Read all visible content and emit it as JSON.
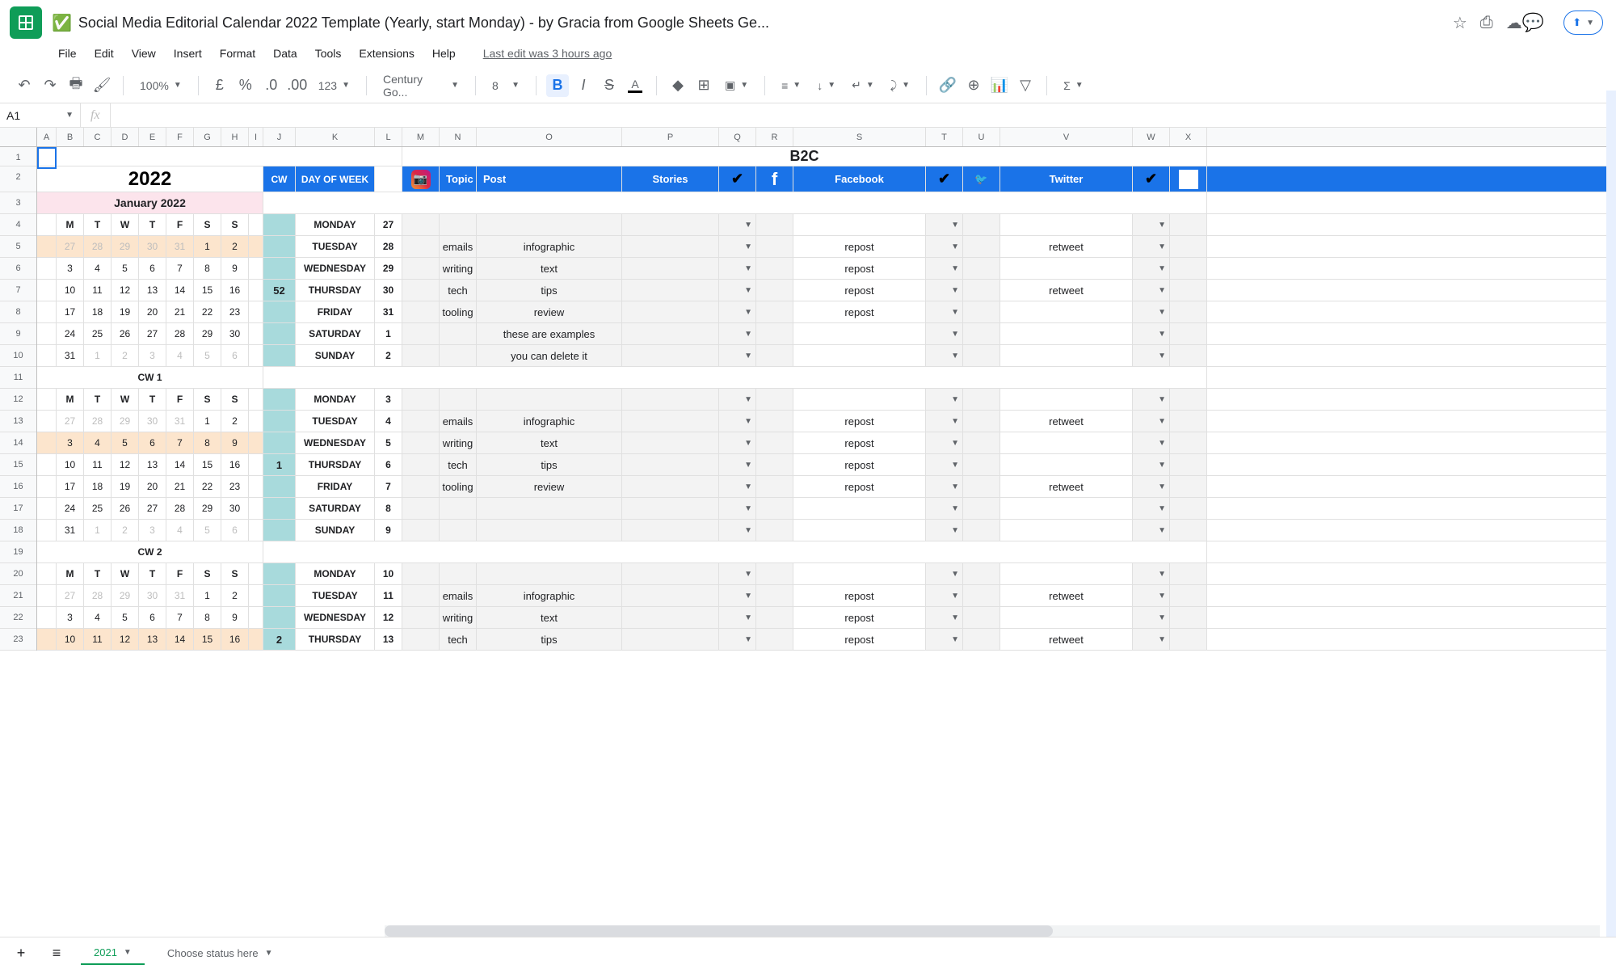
{
  "doc": {
    "title": "Social Media Editorial Calendar 2022 Template (Yearly, start Monday) - by Gracia from Google Sheets Ge...",
    "last_edit": "Last edit was 3 hours ago"
  },
  "menu": [
    "File",
    "Edit",
    "View",
    "Insert",
    "Format",
    "Data",
    "Tools",
    "Extensions",
    "Help"
  ],
  "toolbar": {
    "zoom": "100%",
    "font": "Century Go...",
    "size": "8"
  },
  "name_box": "A1",
  "columns": {
    "labels": [
      "A",
      "B",
      "C",
      "D",
      "E",
      "F",
      "G",
      "H",
      "I",
      "J",
      "K",
      "L",
      "M",
      "N",
      "O",
      "P",
      "Q",
      "R",
      "S",
      "T",
      "U",
      "V",
      "W",
      "X"
    ],
    "widths": [
      24,
      34,
      34,
      34,
      34,
      34,
      34,
      34,
      18,
      40,
      98,
      34,
      46,
      46,
      180,
      120,
      46,
      46,
      164,
      46,
      46,
      164,
      46,
      46
    ]
  },
  "row_count": 23,
  "year": "2022",
  "cw_label": "CW",
  "dow_label": "DAY OF WEEK",
  "b2c": "B2C",
  "social": {
    "topic": "Topic",
    "post": "Post",
    "stories": "Stories",
    "facebook": "Facebook",
    "twitter": "Twitter"
  },
  "month": "January 2022",
  "day_headers": [
    "M",
    "T",
    "W",
    "T",
    "F",
    "S",
    "S"
  ],
  "cal_blocks": [
    {
      "hl_row": 1,
      "rows": [
        [
          "27",
          "28",
          "29",
          "30",
          "31",
          "1",
          "2"
        ],
        [
          "3",
          "4",
          "5",
          "6",
          "7",
          "8",
          "9"
        ],
        [
          "10",
          "11",
          "12",
          "13",
          "14",
          "15",
          "16"
        ],
        [
          "17",
          "18",
          "19",
          "20",
          "21",
          "22",
          "23"
        ],
        [
          "24",
          "25",
          "26",
          "27",
          "28",
          "29",
          "30"
        ],
        [
          "31",
          "1",
          "2",
          "3",
          "4",
          "5",
          "6"
        ]
      ],
      "faded_first": 5,
      "faded_last": 5,
      "title": ""
    },
    {
      "hl_row": 2,
      "title": "CW 1",
      "rows": [
        [
          "27",
          "28",
          "29",
          "30",
          "31",
          "1",
          "2"
        ],
        [
          "3",
          "4",
          "5",
          "6",
          "7",
          "8",
          "9"
        ],
        [
          "10",
          "11",
          "12",
          "13",
          "14",
          "15",
          "16"
        ],
        [
          "17",
          "18",
          "19",
          "20",
          "21",
          "22",
          "23"
        ],
        [
          "24",
          "25",
          "26",
          "27",
          "28",
          "29",
          "30"
        ],
        [
          "31",
          "1",
          "2",
          "3",
          "4",
          "5",
          "6"
        ]
      ],
      "faded_first": 5,
      "faded_last": 5
    },
    {
      "hl_row": 3,
      "title": "CW 2",
      "rows": [
        [
          "27",
          "28",
          "29",
          "30",
          "31",
          "1",
          "2"
        ],
        [
          "3",
          "4",
          "5",
          "6",
          "7",
          "8",
          "9"
        ],
        [
          "10",
          "11",
          "12",
          "13",
          "14",
          "15",
          "16"
        ]
      ],
      "faded_first": 5,
      "faded_last": -1
    }
  ],
  "weeks": [
    {
      "cw": "52",
      "days": [
        {
          "dow": "MONDAY",
          "date": "27",
          "topic": "",
          "post": "",
          "fb": "",
          "tw": ""
        },
        {
          "dow": "TUESDAY",
          "date": "28",
          "topic": "emails",
          "post": "infographic",
          "fb": "repost",
          "tw": "retweet"
        },
        {
          "dow": "WEDNESDAY",
          "date": "29",
          "topic": "writing",
          "post": "text",
          "fb": "repost",
          "tw": ""
        },
        {
          "dow": "THURSDAY",
          "date": "30",
          "topic": "tech",
          "post": "tips",
          "fb": "repost",
          "tw": "retweet"
        },
        {
          "dow": "FRIDAY",
          "date": "31",
          "topic": "tooling",
          "post": "review",
          "fb": "repost",
          "tw": ""
        },
        {
          "dow": "SATURDAY",
          "date": "1",
          "topic": "",
          "post": "these are examples",
          "fb": "",
          "tw": ""
        },
        {
          "dow": "SUNDAY",
          "date": "2",
          "topic": "",
          "post": "you can delete it",
          "fb": "",
          "tw": ""
        }
      ]
    },
    {
      "cw": "1",
      "days": [
        {
          "dow": "MONDAY",
          "date": "3",
          "topic": "",
          "post": "",
          "fb": "",
          "tw": ""
        },
        {
          "dow": "TUESDAY",
          "date": "4",
          "topic": "emails",
          "post": "infographic",
          "fb": "repost",
          "tw": "retweet"
        },
        {
          "dow": "WEDNESDAY",
          "date": "5",
          "topic": "writing",
          "post": "text",
          "fb": "repost",
          "tw": ""
        },
        {
          "dow": "THURSDAY",
          "date": "6",
          "topic": "tech",
          "post": "tips",
          "fb": "repost",
          "tw": ""
        },
        {
          "dow": "FRIDAY",
          "date": "7",
          "topic": "tooling",
          "post": "review",
          "fb": "repost",
          "tw": "retweet"
        },
        {
          "dow": "SATURDAY",
          "date": "8",
          "topic": "",
          "post": "",
          "fb": "",
          "tw": ""
        },
        {
          "dow": "SUNDAY",
          "date": "9",
          "topic": "",
          "post": "",
          "fb": "",
          "tw": ""
        }
      ]
    },
    {
      "cw": "2",
      "days": [
        {
          "dow": "MONDAY",
          "date": "10",
          "topic": "",
          "post": "",
          "fb": "",
          "tw": ""
        },
        {
          "dow": "TUESDAY",
          "date": "11",
          "topic": "emails",
          "post": "infographic",
          "fb": "repost",
          "tw": "retweet"
        },
        {
          "dow": "WEDNESDAY",
          "date": "12",
          "topic": "writing",
          "post": "text",
          "fb": "repost",
          "tw": ""
        },
        {
          "dow": "THURSDAY",
          "date": "13",
          "topic": "tech",
          "post": "tips",
          "fb": "repost",
          "tw": "retweet"
        }
      ]
    }
  ],
  "sheet_tab": "2021",
  "status": "Choose status here"
}
